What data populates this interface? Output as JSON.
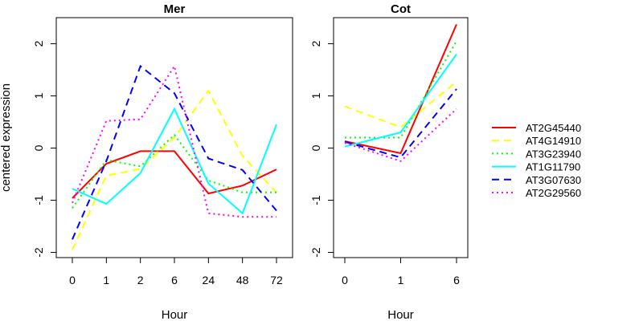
{
  "chart_data": [
    {
      "type": "line",
      "title": "Mer",
      "xlabel": "Hour",
      "ylabel": "centered expression",
      "categories": [
        "0",
        "1",
        "2",
        "6",
        "24",
        "48",
        "72"
      ],
      "ylim": [
        -2.1,
        2.5
      ],
      "yticks": [
        "-2",
        "-1",
        "0",
        "1",
        "2"
      ],
      "series": [
        {
          "name": "AT2G45440",
          "values": [
            -0.96,
            -0.3,
            -0.06,
            -0.06,
            -0.87,
            -0.72,
            -0.41
          ]
        },
        {
          "name": "AT4G14910",
          "values": [
            -1.95,
            -0.53,
            -0.4,
            0.2,
            1.1,
            -0.15,
            -0.85
          ]
        },
        {
          "name": "AT3G23940",
          "values": [
            -1.15,
            -0.23,
            -0.35,
            0.25,
            -0.62,
            -0.85,
            -0.85
          ]
        },
        {
          "name": "AT1G11790",
          "values": [
            -0.78,
            -1.07,
            -0.48,
            0.75,
            -0.68,
            -1.25,
            0.45
          ]
        },
        {
          "name": "AT3G07630",
          "values": [
            -1.75,
            -0.25,
            1.57,
            1.05,
            -0.2,
            -0.42,
            -1.2
          ]
        },
        {
          "name": "AT2G29560",
          "values": [
            -1.05,
            0.52,
            0.55,
            1.57,
            -1.25,
            -1.32,
            -1.32
          ]
        }
      ]
    },
    {
      "type": "line",
      "title": "Cot",
      "xlabel": "Hour",
      "ylabel": "",
      "categories": [
        "0",
        "1",
        "6"
      ],
      "ylim": [
        -2.1,
        2.5
      ],
      "yticks": [
        "-2",
        "-1",
        "0",
        "1",
        "2"
      ],
      "series": [
        {
          "name": "AT2G45440",
          "values": [
            0.13,
            -0.1,
            2.37
          ]
        },
        {
          "name": "AT4G14910",
          "values": [
            0.8,
            0.4,
            1.27
          ]
        },
        {
          "name": "AT3G23940",
          "values": [
            0.2,
            0.2,
            2.05
          ]
        },
        {
          "name": "AT1G11790",
          "values": [
            0.03,
            0.3,
            1.8
          ]
        },
        {
          "name": "AT3G07630",
          "values": [
            0.12,
            -0.18,
            1.13
          ]
        },
        {
          "name": "AT2G29560",
          "values": [
            0.1,
            -0.25,
            0.75
          ]
        }
      ]
    }
  ],
  "legend": {
    "placement": "right",
    "items": [
      {
        "label": "AT2G45440",
        "color": "#ff0000",
        "dash": "solid"
      },
      {
        "label": "AT4G14910",
        "color": "#ffff00",
        "dash": "dashed"
      },
      {
        "label": "AT3G23940",
        "color": "#00ff00",
        "dash": "dotted"
      },
      {
        "label": "AT1G11790",
        "color": "#00ffff",
        "dash": "solid"
      },
      {
        "label": "AT3G07630",
        "color": "#0000ff",
        "dash": "dashed"
      },
      {
        "label": "AT2G29560",
        "color": "#ff00ff",
        "dash": "dotted"
      }
    ]
  }
}
